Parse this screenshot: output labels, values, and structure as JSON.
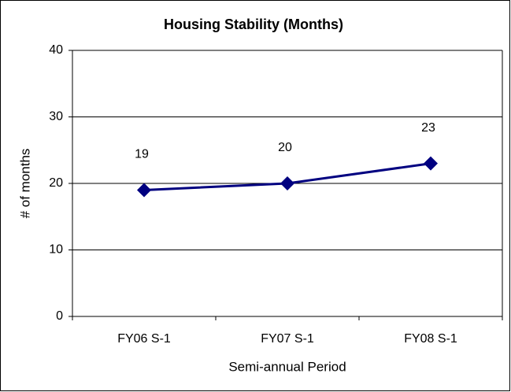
{
  "chart_data": {
    "type": "line",
    "title": "Housing Stability (Months)",
    "xlabel": "Semi-annual Period",
    "ylabel": "# of months",
    "categories": [
      "FY06 S-1",
      "FY07 S-1",
      "FY08 S-1"
    ],
    "series": [
      {
        "name": "Housing Stability",
        "color": "#000080",
        "values": [
          19,
          20,
          23
        ]
      }
    ],
    "ylim": [
      0,
      40
    ],
    "yticks": [
      0,
      10,
      20,
      30,
      40
    ],
    "grid": true
  }
}
